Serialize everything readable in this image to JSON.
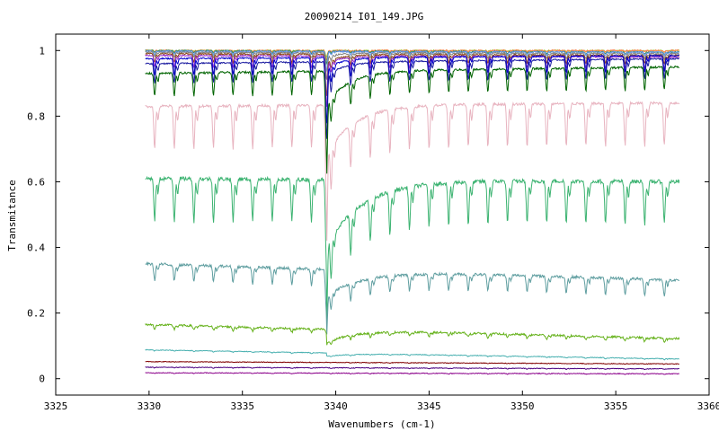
{
  "chart_data": {
    "type": "line",
    "title": "20090214_I01_149.JPG",
    "xlabel": "Wavenumbers (cm-1)",
    "ylabel": "Transmitance",
    "xlim": [
      3325,
      3360
    ],
    "ylim": [
      -0.05,
      1.05
    ],
    "xticks": [
      3325,
      3330,
      3335,
      3340,
      3345,
      3350,
      3355,
      3360
    ],
    "yticks": [
      0,
      0.2,
      0.4,
      0.6,
      0.8,
      1
    ],
    "grid": false,
    "legend": "none",
    "x_range": [
      3329.8,
      3358.4
    ],
    "periodic_line_spacing_cm1": 1.05,
    "periodic_line_start_cm1": 3330.3,
    "strong_line_cm1": 3339.5,
    "series": [
      {
        "color": "#9acd32",
        "start": 1.0,
        "end": 1.0,
        "line_depth": 0.003,
        "strong_depth": 0.02,
        "strong_recovery_depth": 0,
        "recovery_width_cm1": 1,
        "noise": 0.002
      },
      {
        "color": "#ff7f50",
        "start": 1.0,
        "end": 1.0,
        "line_depth": 0.004,
        "strong_depth": 0.03,
        "strong_recovery_depth": 0,
        "recovery_width_cm1": 1,
        "noise": 0.002
      },
      {
        "color": "#2e8b57",
        "start": 1.0,
        "end": 0.995,
        "line_depth": 0.006,
        "strong_depth": 0.04,
        "strong_recovery_depth": 0,
        "recovery_width_cm1": 1,
        "noise": 0.002
      },
      {
        "color": "#6495ed",
        "start": 0.998,
        "end": 0.995,
        "line_depth": 0.01,
        "strong_depth": 0.06,
        "strong_recovery_depth": 0,
        "recovery_width_cm1": 1,
        "noise": 0.002
      },
      {
        "color": "#808080",
        "start": 0.995,
        "end": 0.99,
        "line_depth": 0.015,
        "strong_depth": 0.08,
        "strong_recovery_depth": 0.01,
        "recovery_width_cm1": 1,
        "noise": 0.002
      },
      {
        "color": "#8b4513",
        "start": 0.99,
        "end": 0.985,
        "line_depth": 0.025,
        "strong_depth": 0.12,
        "strong_recovery_depth": 0.02,
        "recovery_width_cm1": 1,
        "noise": 0.002
      },
      {
        "color": "#9932cc",
        "start": 0.985,
        "end": 0.98,
        "line_depth": 0.035,
        "strong_depth": 0.15,
        "strong_recovery_depth": 0.02,
        "recovery_width_cm1": 1,
        "noise": 0.002
      },
      {
        "color": "#0000cd",
        "start": 0.975,
        "end": 0.985,
        "line_depth": 0.05,
        "strong_depth": 0.19,
        "strong_recovery_depth": 0.03,
        "recovery_width_cm1": 1,
        "noise": 0.002
      },
      {
        "color": "#1a1aa0",
        "start": 0.96,
        "end": 0.975,
        "line_depth": 0.06,
        "strong_depth": 0.22,
        "strong_recovery_depth": 0.04,
        "recovery_width_cm1": 1,
        "noise": 0.002
      },
      {
        "color": "#006400",
        "start": 0.93,
        "end": 0.95,
        "line_depth": 0.07,
        "strong_depth": 0.24,
        "strong_recovery_depth": 0.1,
        "recovery_width_cm1": 1.2,
        "noise": 0.003
      },
      {
        "color": "#e8b4c0",
        "start": 0.83,
        "end": 0.84,
        "line_depth": 0.13,
        "strong_depth": 0.3,
        "strong_recovery_depth": 0.15,
        "recovery_width_cm1": 1.5,
        "noise": 0.004
      },
      {
        "color": "#3cb371",
        "start": 0.61,
        "end": 0.6,
        "line_depth": 0.13,
        "strong_depth": 0.26,
        "strong_recovery_depth": 0.2,
        "recovery_width_cm1": 2,
        "noise": 0.006
      },
      {
        "color": "#5f9ea0",
        "start": 0.35,
        "end": 0.3,
        "line_depth": 0.05,
        "strong_depth": 0.13,
        "strong_recovery_depth": 0.08,
        "recovery_width_cm1": 2,
        "noise": 0.004
      },
      {
        "color": "#66b21c",
        "start": 0.165,
        "end": 0.122,
        "line_depth": 0.012,
        "strong_depth": 0.01,
        "strong_recovery_depth": 0.04,
        "recovery_width_cm1": 1.5,
        "noise": 0.003
      },
      {
        "color": "#48b0b0",
        "start": 0.088,
        "end": 0.06,
        "line_depth": 0.003,
        "strong_depth": 0,
        "strong_recovery_depth": 0.01,
        "recovery_width_cm1": 1.5,
        "noise": 0.001
      },
      {
        "color": "#800000",
        "start": 0.052,
        "end": 0.045,
        "line_depth": 0.001,
        "strong_depth": 0,
        "strong_recovery_depth": 0,
        "recovery_width_cm1": 1,
        "noise": 0.001
      },
      {
        "color": "#4b0082",
        "start": 0.035,
        "end": 0.03,
        "line_depth": 0.002,
        "strong_depth": 0,
        "strong_recovery_depth": 0,
        "recovery_width_cm1": 1,
        "noise": 0.001
      },
      {
        "color": "#8b008b",
        "start": 0.018,
        "end": 0.015,
        "line_depth": 0.002,
        "strong_depth": 0,
        "strong_recovery_depth": 0,
        "recovery_width_cm1": 1,
        "noise": 0.001
      }
    ]
  }
}
